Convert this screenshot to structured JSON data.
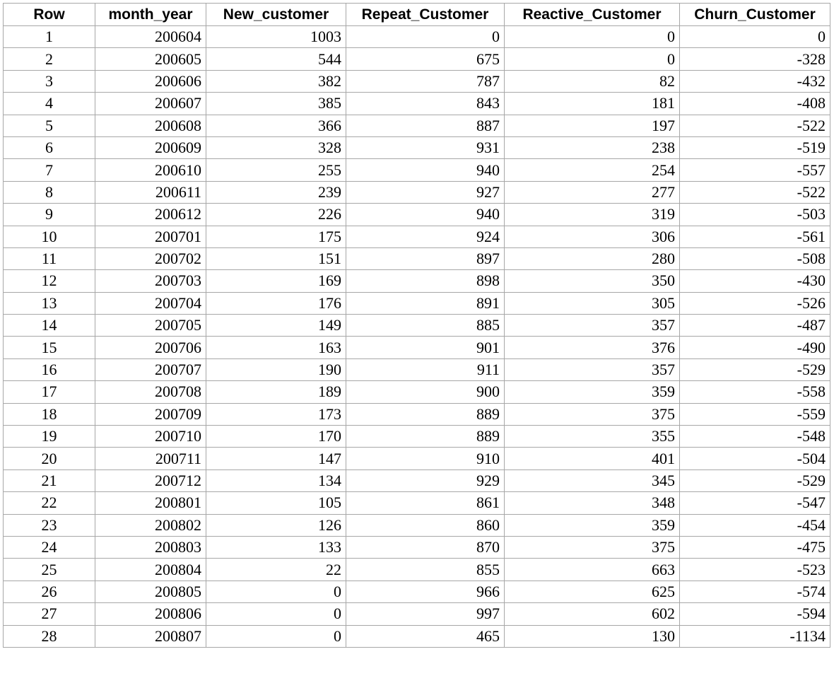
{
  "table": {
    "columns": [
      "Row",
      "month_year",
      "New_customer",
      "Repeat_Customer",
      "Reactive_Customer",
      "Churn_Customer"
    ],
    "rows": [
      [
        "1",
        "200604",
        "1003",
        "0",
        "0",
        "0"
      ],
      [
        "2",
        "200605",
        "544",
        "675",
        "0",
        "-328"
      ],
      [
        "3",
        "200606",
        "382",
        "787",
        "82",
        "-432"
      ],
      [
        "4",
        "200607",
        "385",
        "843",
        "181",
        "-408"
      ],
      [
        "5",
        "200608",
        "366",
        "887",
        "197",
        "-522"
      ],
      [
        "6",
        "200609",
        "328",
        "931",
        "238",
        "-519"
      ],
      [
        "7",
        "200610",
        "255",
        "940",
        "254",
        "-557"
      ],
      [
        "8",
        "200611",
        "239",
        "927",
        "277",
        "-522"
      ],
      [
        "9",
        "200612",
        "226",
        "940",
        "319",
        "-503"
      ],
      [
        "10",
        "200701",
        "175",
        "924",
        "306",
        "-561"
      ],
      [
        "11",
        "200702",
        "151",
        "897",
        "280",
        "-508"
      ],
      [
        "12",
        "200703",
        "169",
        "898",
        "350",
        "-430"
      ],
      [
        "13",
        "200704",
        "176",
        "891",
        "305",
        "-526"
      ],
      [
        "14",
        "200705",
        "149",
        "885",
        "357",
        "-487"
      ],
      [
        "15",
        "200706",
        "163",
        "901",
        "376",
        "-490"
      ],
      [
        "16",
        "200707",
        "190",
        "911",
        "357",
        "-529"
      ],
      [
        "17",
        "200708",
        "189",
        "900",
        "359",
        "-558"
      ],
      [
        "18",
        "200709",
        "173",
        "889",
        "375",
        "-559"
      ],
      [
        "19",
        "200710",
        "170",
        "889",
        "355",
        "-548"
      ],
      [
        "20",
        "200711",
        "147",
        "910",
        "401",
        "-504"
      ],
      [
        "21",
        "200712",
        "134",
        "929",
        "345",
        "-529"
      ],
      [
        "22",
        "200801",
        "105",
        "861",
        "348",
        "-547"
      ],
      [
        "23",
        "200802",
        "126",
        "860",
        "359",
        "-454"
      ],
      [
        "24",
        "200803",
        "133",
        "870",
        "375",
        "-475"
      ],
      [
        "25",
        "200804",
        "22",
        "855",
        "663",
        "-523"
      ],
      [
        "26",
        "200805",
        "0",
        "966",
        "625",
        "-574"
      ],
      [
        "27",
        "200806",
        "0",
        "997",
        "602",
        "-594"
      ],
      [
        "28",
        "200807",
        "0",
        "465",
        "130",
        "-1134"
      ]
    ]
  }
}
